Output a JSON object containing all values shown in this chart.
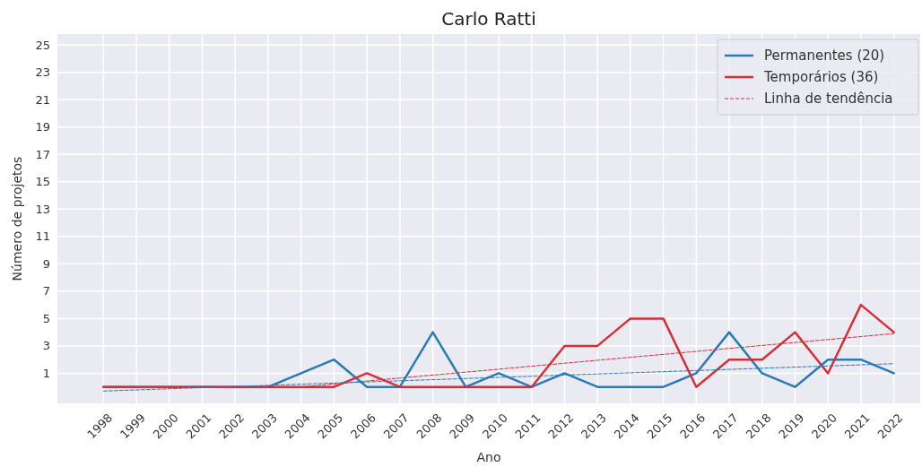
{
  "chart_data": {
    "type": "line",
    "title": "Carlo Ratti",
    "xlabel": "Ano",
    "ylabel": "Número de projetos",
    "x": [
      1998,
      1999,
      2000,
      2001,
      2002,
      2003,
      2004,
      2005,
      2006,
      2007,
      2008,
      2009,
      2010,
      2011,
      2012,
      2013,
      2014,
      2015,
      2016,
      2017,
      2018,
      2019,
      2020,
      2021,
      2022
    ],
    "xlim": [
      1996.6,
      2022.8
    ],
    "xticks": [
      1998,
      1999,
      2000,
      2001,
      2002,
      2003,
      2004,
      2005,
      2006,
      2007,
      2008,
      2009,
      2010,
      2011,
      2012,
      2013,
      2014,
      2015,
      2016,
      2017,
      2018,
      2019,
      2020,
      2021,
      2022
    ],
    "ylim": [
      -1.2,
      25.8
    ],
    "yticks": [
      1,
      3,
      5,
      7,
      9,
      11,
      13,
      15,
      17,
      19,
      21,
      23,
      25
    ],
    "series": [
      {
        "name": "Permanentes (20)",
        "color": "#2a7ab9",
        "values": [
          0,
          0,
          0,
          0,
          0,
          0,
          1,
          2,
          0,
          0,
          4,
          0,
          1,
          0,
          1,
          0,
          0,
          0,
          1,
          4,
          1,
          0,
          2,
          2,
          1
        ]
      },
      {
        "name": "Temporários (36)",
        "color": "#d62f36",
        "values": [
          0,
          0,
          0,
          0,
          0,
          0,
          0,
          0,
          1,
          0,
          0,
          0,
          0,
          0,
          3,
          3,
          5,
          5,
          0,
          2,
          2,
          4,
          1,
          6,
          4
        ]
      },
      {
        "name": "Linha de tendência",
        "color": "#d62f36",
        "x": [
          2004,
          2022
        ],
        "values": [
          0,
          3.9
        ],
        "line_style": "dashed"
      },
      {
        "color": "#2a7ab9",
        "x": [
          1998,
          2022
        ],
        "values": [
          -0.3,
          1.7
        ],
        "line_style": "dashed"
      }
    ],
    "grid": true,
    "legend": "top right"
  }
}
